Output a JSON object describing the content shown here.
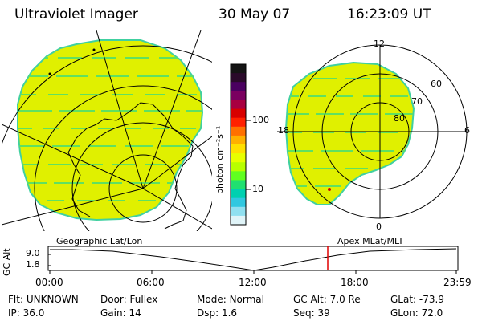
{
  "header": {
    "instrument": "Ultraviolet Imager",
    "date": "30 May 07",
    "time": "16:23:09 UT"
  },
  "colorbar": {
    "unit_label": "photon cm⁻²s⁻¹",
    "ticks": [
      "100",
      "10"
    ],
    "scale": "log",
    "colors": [
      "#141414",
      "#2a0a2a",
      "#4a0060",
      "#7a0060",
      "#a80040",
      "#d80000",
      "#ff2000",
      "#ff7000",
      "#ffb000",
      "#ffe000",
      "#e8ff00",
      "#b8ff00",
      "#60ff20",
      "#20e070",
      "#00d0b0",
      "#30c8e0",
      "#90e0f0",
      "#e0f4f8"
    ]
  },
  "mlt_plot": {
    "lt_labels": [
      "12",
      "6",
      "0",
      "18"
    ],
    "lat_labels": [
      "60",
      "70",
      "80"
    ]
  },
  "orbit_strip": {
    "left_title": "Geographic Lat/Lon",
    "right_title": "Apex MLat/MLT",
    "ylabel": "GC Alt",
    "y_ticks": [
      "9.0",
      "1.8"
    ],
    "time_ticks": [
      "00:00",
      "06:00",
      "12:00",
      "18:00",
      "23:59"
    ],
    "current_time_marker": "16:23:09",
    "marker_color": "#e00000"
  },
  "info": {
    "row1": [
      {
        "label": "Flt:",
        "value": "UNKNOWN"
      },
      {
        "label": "Door:",
        "value": "Fullex"
      },
      {
        "label": "Mode:",
        "value": "Normal"
      },
      {
        "label": "GC Alt:",
        "value": "7.0 Re"
      },
      {
        "label": "GLat:",
        "value": "-73.9"
      }
    ],
    "row2": [
      {
        "label": "IP:",
        "value": "36.0"
      },
      {
        "label": "Gain:",
        "value": "14"
      },
      {
        "label": "Dsp:",
        "value": "1.6"
      },
      {
        "label": "Seq:",
        "value": "39"
      },
      {
        "label": "GLon:",
        "value": "72.0"
      }
    ]
  },
  "colors": {
    "emission_fill": "#e0f000",
    "emission_edge": "#40d0a0",
    "stripe": "#60e060"
  }
}
